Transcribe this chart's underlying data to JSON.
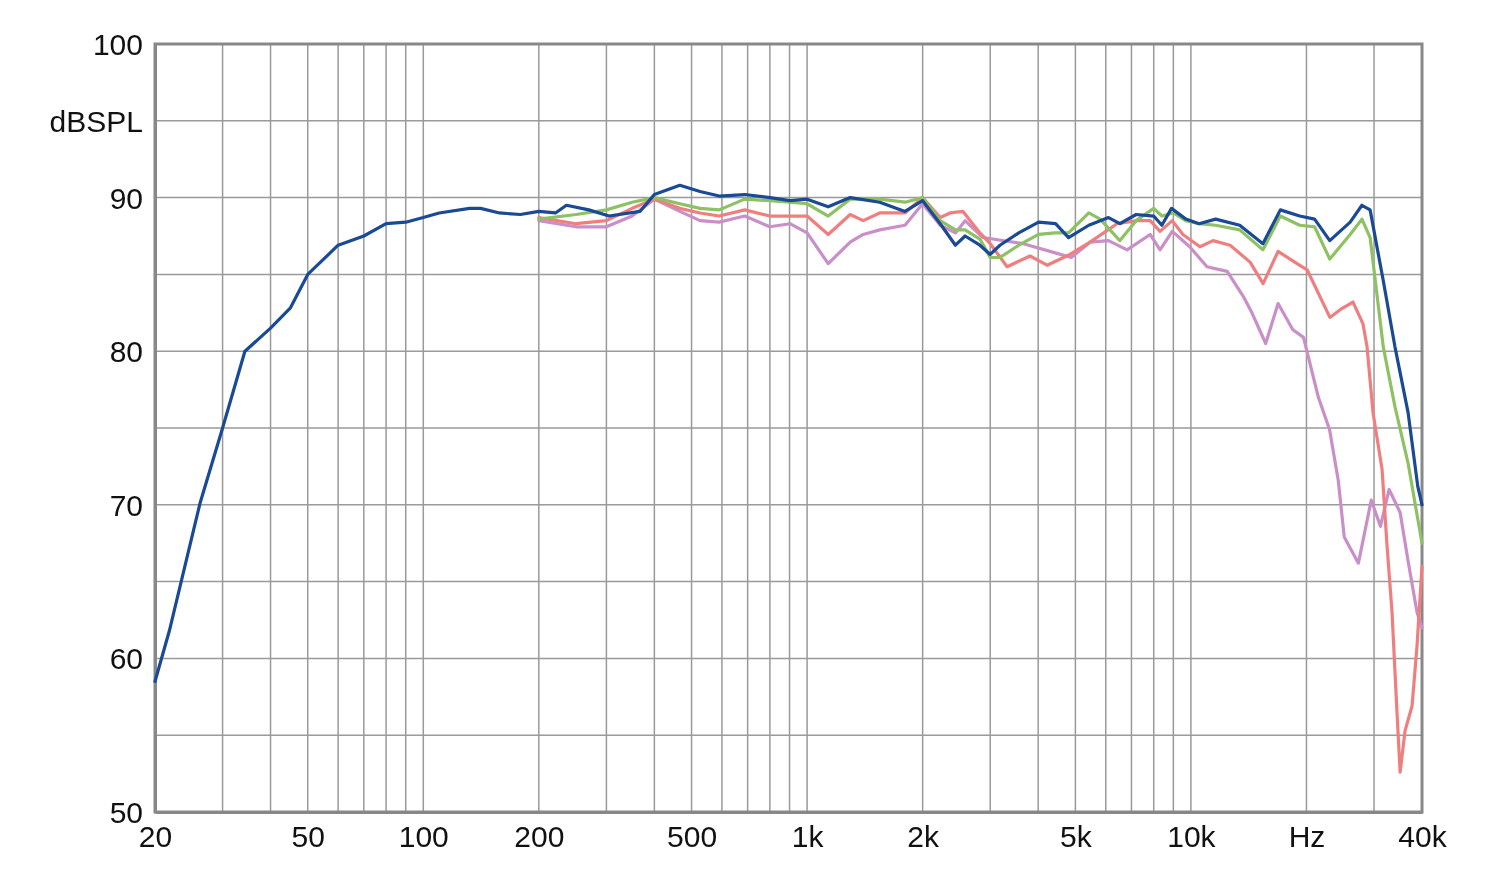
{
  "chart_data": {
    "type": "line",
    "ylabel": "dBSPL",
    "log": "x",
    "grid": true,
    "line_style": "solid",
    "xlim": [
      20,
      40000
    ],
    "ylim": [
      50,
      100
    ],
    "xticks": [
      20,
      {
        "value": 30,
        "label": null
      },
      {
        "value": 40,
        "label": null
      },
      50,
      {
        "value": 60,
        "label": null
      },
      {
        "value": 70,
        "label": null
      },
      {
        "value": 80,
        "label": null
      },
      {
        "value": 90,
        "label": null
      },
      100,
      200,
      {
        "value": 300,
        "label": null
      },
      {
        "value": 400,
        "label": null
      },
      500,
      {
        "value": 600,
        "label": null
      },
      {
        "value": 700,
        "label": null
      },
      {
        "value": 800,
        "label": null
      },
      {
        "value": 900,
        "label": null
      },
      {
        "value": 1000,
        "label": "1k"
      },
      {
        "value": 2000,
        "label": "2k"
      },
      {
        "value": 3000,
        "label": null
      },
      {
        "value": 4000,
        "label": null
      },
      {
        "value": 5000,
        "label": "5k"
      },
      {
        "value": 6000,
        "label": null
      },
      {
        "value": 7000,
        "label": null
      },
      {
        "value": 8000,
        "label": null
      },
      {
        "value": 9000,
        "label": null
      },
      {
        "value": 10000,
        "label": "10k"
      },
      {
        "value": 20000,
        "label": "Hz"
      },
      {
        "value": 30000,
        "label": null
      },
      {
        "value": 40000,
        "label": "40k"
      }
    ],
    "yticks": [
      50,
      {
        "value": 55,
        "label": null
      },
      60,
      {
        "value": 65,
        "label": null
      },
      70,
      {
        "value": 75,
        "label": null
      },
      80,
      {
        "value": 85,
        "label": null
      },
      90,
      {
        "value": 95,
        "label": null
      },
      100
    ],
    "series": [
      {
        "color": "#c98fc9",
        "x": [
          200,
          250,
          300,
          350,
          400,
          466,
          526,
          590,
          688,
          800,
          902,
          1000,
          1135,
          1295,
          1400,
          1546,
          1799,
          2000,
          2222,
          2435,
          2580,
          2870,
          3660,
          4430,
          4880,
          5460,
          6100,
          6820,
          7830,
          8310,
          8940,
          9930,
          11010,
          12430,
          13740,
          14420,
          15660,
          16870,
          18430,
          19650,
          21480,
          22970,
          24200,
          25090,
          27310,
          29500,
          31170,
          32840,
          35080,
          36880,
          38820,
          40000
        ],
        "values": [
          88.5,
          88.1,
          88.1,
          88.8,
          89.9,
          89.1,
          88.5,
          88.4,
          88.8,
          88.1,
          88.3,
          87.7,
          85.7,
          87.1,
          87.6,
          87.9,
          88.2,
          89.6,
          88.2,
          87.7,
          88.5,
          87.4,
          87.0,
          86.4,
          86.1,
          87.1,
          87.2,
          86.6,
          87.6,
          86.6,
          87.8,
          86.8,
          85.5,
          85.2,
          83.5,
          82.5,
          80.5,
          83.1,
          81.4,
          80.9,
          77.0,
          74.9,
          71.6,
          67.9,
          66.2,
          70.3,
          68.6,
          71.0,
          69.5,
          66.2,
          63.0,
          62.0
        ]
      },
      {
        "color": "#ef7f7f",
        "x": [
          200,
          250,
          300,
          350,
          400,
          466,
          526,
          590,
          688,
          800,
          902,
          1000,
          1135,
          1295,
          1400,
          1546,
          1799,
          2000,
          2222,
          2358,
          2548,
          2820,
          3000,
          3320,
          3810,
          4220,
          4840,
          5460,
          6420,
          7240,
          7830,
          8310,
          8940,
          9530,
          10560,
          11420,
          12650,
          14260,
          15420,
          16870,
          18900,
          20080,
          23020,
          24480,
          26440,
          28060,
          28760,
          29820,
          31480,
          32440,
          33420,
          34440,
          35080,
          36140,
          37680,
          38820,
          40000
        ],
        "values": [
          88.7,
          88.3,
          88.5,
          89.3,
          89.9,
          89.3,
          89.0,
          88.8,
          89.2,
          88.8,
          88.8,
          88.8,
          87.6,
          88.9,
          88.5,
          89.0,
          89.0,
          90.0,
          88.7,
          89.0,
          89.1,
          87.7,
          87.0,
          85.5,
          86.2,
          85.6,
          86.3,
          87.1,
          88.3,
          88.5,
          88.5,
          87.8,
          88.5,
          87.6,
          86.8,
          87.2,
          86.9,
          85.8,
          84.4,
          86.5,
          85.7,
          85.3,
          82.2,
          82.7,
          83.2,
          81.8,
          80.3,
          76.0,
          72.3,
          67.3,
          63.0,
          56.4,
          52.6,
          55.3,
          56.9,
          60.8,
          66.0
        ]
      },
      {
        "color": "#8dc163",
        "x": [
          200,
          250,
          300,
          350,
          400,
          466,
          526,
          590,
          688,
          800,
          902,
          1000,
          1135,
          1295,
          1546,
          1799,
          2000,
          2222,
          2435,
          2580,
          2820,
          3000,
          3180,
          3560,
          4010,
          4430,
          4800,
          5420,
          5800,
          6530,
          7200,
          8000,
          8400,
          9000,
          9700,
          10500,
          11600,
          13400,
          15400,
          17100,
          19200,
          21000,
          23000,
          26000,
          27900,
          29300,
          31700,
          34000,
          36800,
          40000
        ],
        "values": [
          88.6,
          88.9,
          89.2,
          89.7,
          90.0,
          89.6,
          89.3,
          89.2,
          89.9,
          89.8,
          89.7,
          89.6,
          88.8,
          89.9,
          89.9,
          89.7,
          90.0,
          88.5,
          87.9,
          87.9,
          87.3,
          86.1,
          86.1,
          86.9,
          87.6,
          87.7,
          87.7,
          89.0,
          88.6,
          87.2,
          88.5,
          89.3,
          88.8,
          89.0,
          88.5,
          88.3,
          88.2,
          87.9,
          86.6,
          88.8,
          88.2,
          88.1,
          86.0,
          87.6,
          88.6,
          87.4,
          80.3,
          76.4,
          72.7,
          67.5
        ]
      },
      {
        "color": "#1a4a94",
        "x": [
          20,
          21.8,
          26.2,
          30,
          34.3,
          40,
          45,
          50,
          60,
          70,
          80,
          90,
          100,
          110,
          132,
          141,
          158,
          179,
          200,
          221,
          236,
          270,
          305,
          367,
          400,
          466,
          526,
          590,
          688,
          800,
          902,
          1000,
          1135,
          1295,
          1546,
          1799,
          2000,
          2222,
          2435,
          2580,
          2820,
          3000,
          3180,
          3560,
          4010,
          4440,
          4800,
          5420,
          6100,
          6530,
          7200,
          8000,
          8400,
          8900,
          9700,
          10500,
          11600,
          13400,
          15400,
          17100,
          19200,
          21000,
          23000,
          26000,
          27900,
          29300,
          31700,
          34000,
          36800,
          39000,
          40000
        ],
        "values": [
          58.5,
          61.8,
          70.1,
          75.0,
          80.0,
          81.5,
          82.8,
          85.0,
          86.9,
          87.5,
          88.3,
          88.4,
          88.7,
          89.0,
          89.3,
          89.3,
          89.0,
          88.9,
          89.1,
          89.0,
          89.5,
          89.2,
          88.8,
          89.1,
          90.2,
          90.8,
          90.4,
          90.1,
          90.2,
          90.0,
          89.8,
          89.9,
          89.4,
          90.0,
          89.7,
          89.1,
          89.8,
          88.3,
          86.9,
          87.5,
          86.9,
          86.3,
          86.9,
          87.7,
          88.4,
          88.3,
          87.4,
          88.2,
          88.7,
          88.3,
          88.9,
          88.8,
          88.2,
          89.3,
          88.6,
          88.3,
          88.6,
          88.2,
          87.0,
          89.2,
          88.8,
          88.6,
          87.2,
          88.4,
          89.5,
          89.2,
          84.6,
          80.3,
          76.0,
          71.2,
          70.0
        ]
      }
    ]
  }
}
